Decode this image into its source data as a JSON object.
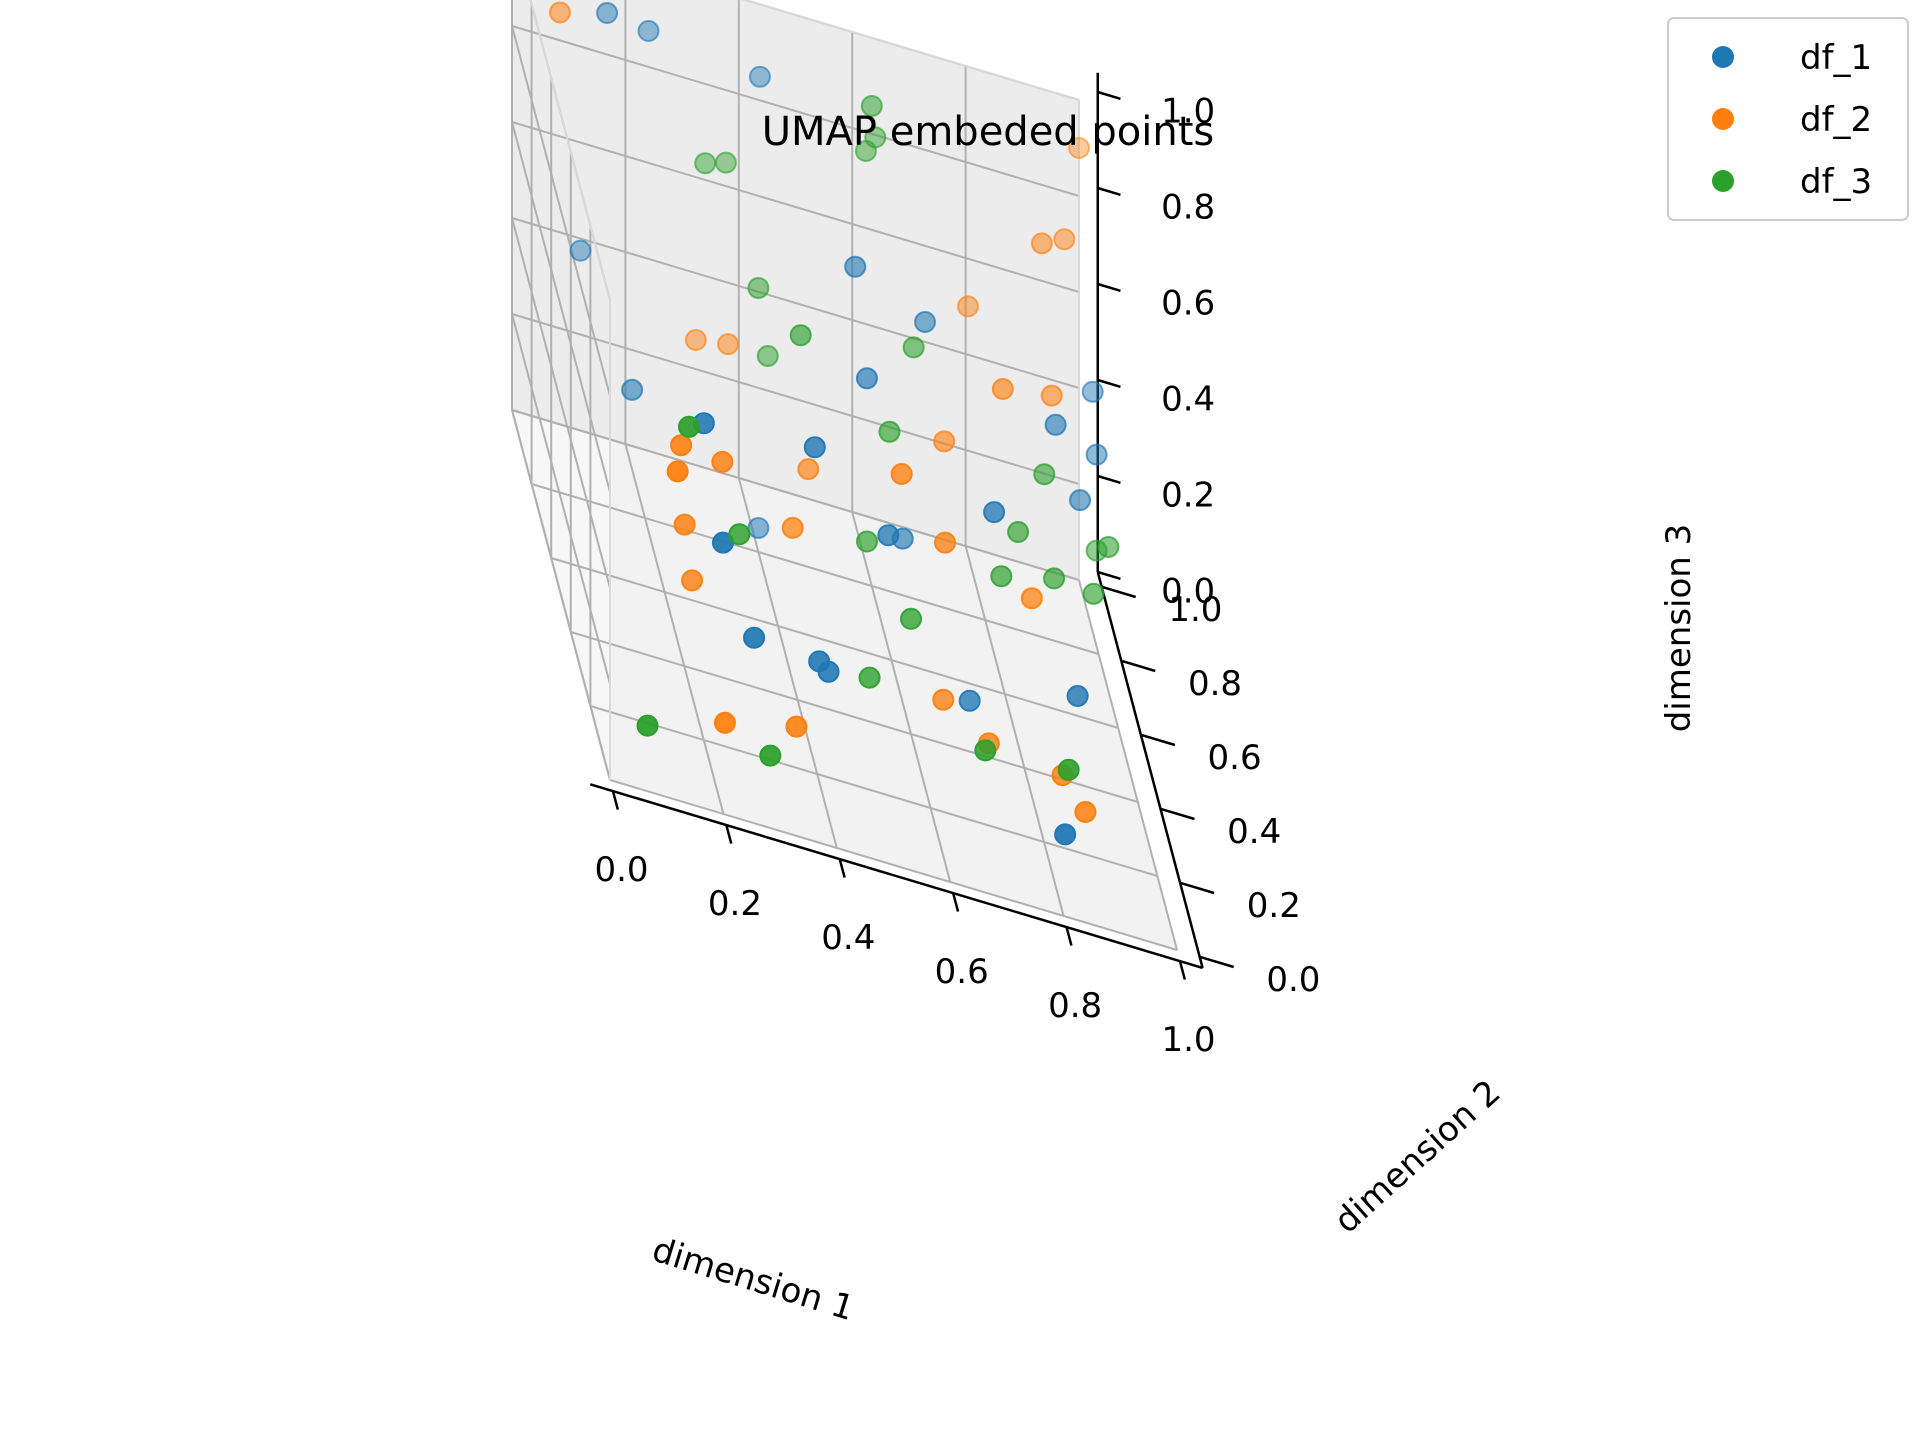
{
  "chart_data": {
    "type": "scatter",
    "projection": "3d",
    "title": "UMAP embeded points",
    "xlabel": "dimension 1",
    "ylabel": "dimension 2",
    "zlabel": "dimension 3",
    "xlim": [
      0,
      1
    ],
    "ylim": [
      0,
      1
    ],
    "zlim": [
      0,
      1
    ],
    "xticks": [
      "0.0",
      "0.2",
      "0.4",
      "0.6",
      "0.8",
      "1.0"
    ],
    "yticks": [
      "0.0",
      "0.2",
      "0.4",
      "0.6",
      "0.8",
      "1.0"
    ],
    "zticks": [
      "0.0",
      "0.2",
      "0.4",
      "0.6",
      "0.8",
      "1.0"
    ],
    "grid": true,
    "legend_position": "top-right",
    "series": [
      {
        "name": "df_1",
        "color": "#1f77b4",
        "points": [
          [
            0.22,
            0.12,
            0.48
          ],
          [
            0.28,
            0.15,
            0.28
          ],
          [
            0.2,
            0.2,
            0.66
          ],
          [
            0.4,
            0.8,
            0.05
          ],
          [
            0.42,
            0.34,
            0.58
          ],
          [
            0.55,
            0.68,
            0.74
          ],
          [
            0.56,
            0.4,
            0.4
          ],
          [
            0.75,
            0.42,
            0.5
          ],
          [
            0.82,
            0.1,
            0.1
          ],
          [
            0.88,
            0.32,
            0.24
          ],
          [
            0.9,
            0.66,
            0.55
          ],
          [
            0.95,
            0.7,
            0.38
          ],
          [
            1.0,
            0.86,
            0.5
          ],
          [
            1.0,
            0.82,
            0.4
          ],
          [
            0.14,
            0.84,
            1.0
          ],
          [
            0.22,
            0.88,
            0.96
          ],
          [
            0.42,
            0.9,
            0.92
          ],
          [
            0.1,
            0.88,
            0.46
          ],
          [
            0.16,
            0.7,
            0.33
          ],
          [
            0.4,
            0.18,
            0.25
          ],
          [
            0.42,
            0.2,
            0.22
          ],
          [
            0.62,
            0.6,
            0.26
          ],
          [
            0.55,
            0.56,
            0.6
          ],
          [
            0.68,
            0.72,
            0.64
          ],
          [
            0.7,
            0.38,
            0.12
          ]
        ]
      },
      {
        "name": "df_2",
        "color": "#ff7f0e",
        "points": [
          [
            0.05,
            0.8,
            1.0
          ],
          [
            0.14,
            0.12,
            0.6
          ],
          [
            0.16,
            0.2,
            0.6
          ],
          [
            0.18,
            0.28,
            0.38
          ],
          [
            0.25,
            0.3,
            0.52
          ],
          [
            0.2,
            0.32,
            0.24
          ],
          [
            0.22,
            0.1,
            0.12
          ],
          [
            0.36,
            0.18,
            0.1
          ],
          [
            0.45,
            0.58,
            0.36
          ],
          [
            0.4,
            0.45,
            0.32
          ],
          [
            0.58,
            0.38,
            0.55
          ],
          [
            0.66,
            0.4,
            0.42
          ],
          [
            0.7,
            0.64,
            0.46
          ],
          [
            0.8,
            0.62,
            0.62
          ],
          [
            0.9,
            0.7,
            0.58
          ],
          [
            0.65,
            0.36,
            0.12
          ],
          [
            0.72,
            0.3,
            0.1
          ],
          [
            0.85,
            0.3,
            0.08
          ],
          [
            0.88,
            0.24,
            0.06
          ],
          [
            0.9,
            0.8,
            0.82
          ],
          [
            0.95,
            0.86,
            0.8
          ],
          [
            1.0,
            1.0,
            0.9
          ],
          [
            0.78,
            0.86,
            0.6
          ],
          [
            0.35,
            0.82,
            0.4
          ],
          [
            0.3,
            0.86,
            0.36
          ],
          [
            0.82,
            0.44,
            0.33
          ]
        ]
      },
      {
        "name": "df_3",
        "color": "#2ca02c",
        "points": [
          [
            0.08,
            0.08,
            0.08
          ],
          [
            0.16,
            0.12,
            0.7
          ],
          [
            0.28,
            0.3,
            0.38
          ],
          [
            0.3,
            0.1,
            0.08
          ],
          [
            0.36,
            0.9,
            0.72
          ],
          [
            0.32,
            0.88,
            0.72
          ],
          [
            0.4,
            0.8,
            0.55
          ],
          [
            0.42,
            0.82,
            0.4
          ],
          [
            0.52,
            0.36,
            0.12
          ],
          [
            0.55,
            0.56,
            0.26
          ],
          [
            0.6,
            0.62,
            0.46
          ],
          [
            0.62,
            0.88,
            0.88
          ],
          [
            0.6,
            0.86,
            0.86
          ],
          [
            0.6,
            0.4,
            0.24
          ],
          [
            0.66,
            0.72,
            0.58
          ],
          [
            0.78,
            0.52,
            0.3
          ],
          [
            0.82,
            0.58,
            0.36
          ],
          [
            0.84,
            0.18,
            0.18
          ],
          [
            0.88,
            0.56,
            0.3
          ],
          [
            0.96,
            0.62,
            0.25
          ],
          [
            1.0,
            0.7,
            0.3
          ],
          [
            1.0,
            0.82,
            0.2
          ],
          [
            0.88,
            0.66,
            0.44
          ],
          [
            0.6,
            0.8,
            1.0
          ],
          [
            0.7,
            0.22,
            0.14
          ],
          [
            0.44,
            0.6,
            0.62
          ]
        ]
      }
    ]
  }
}
